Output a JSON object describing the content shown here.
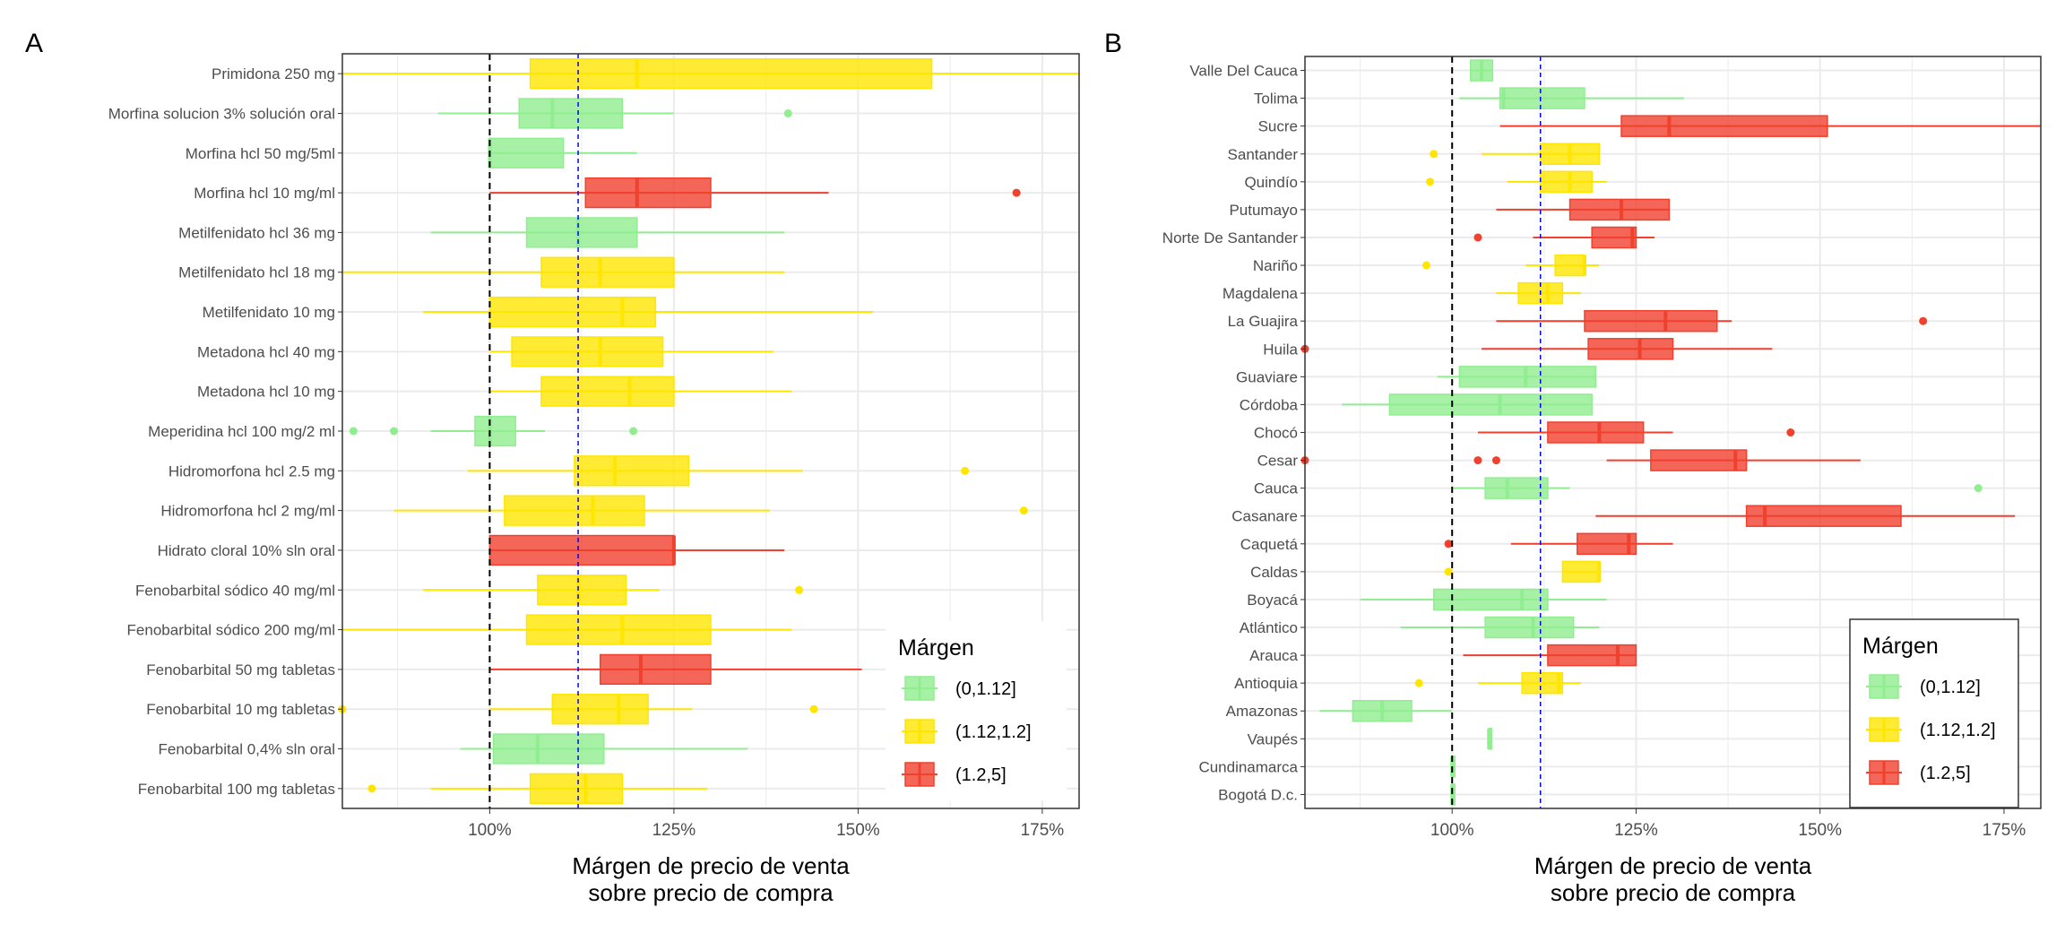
{
  "colors": {
    "low": "#90EE90",
    "mid": "#FFE600",
    "high": "#F0402E",
    "ref_black": "#000000",
    "ref_blue": "#0000FF",
    "grid": "#EBEBEB",
    "axis_text": "#4D4D4D"
  },
  "chart_data": [
    {
      "type": "boxplot",
      "panel_label": "A",
      "xlabel_line1": "Márgen de precio de venta",
      "xlabel_line2": "sobre precio de compra",
      "xlim": [
        0.8,
        1.8
      ],
      "x_ticks": [
        1.0,
        1.25,
        1.5,
        1.75
      ],
      "x_tick_labels": [
        "100%",
        "125%",
        "150%",
        "175%"
      ],
      "reference_lines": {
        "black_dashed": 1.0,
        "blue_dashed": 1.12
      },
      "legend": {
        "title": "Márgen",
        "position": "bottom-right",
        "entries": [
          {
            "label": "(0,1.12]",
            "group": "low"
          },
          {
            "label": "(1.12,1.2]",
            "group": "mid"
          },
          {
            "label": "(1.2,5]",
            "group": "high"
          }
        ]
      },
      "boxes": [
        {
          "label": "Primidona 250 mg",
          "group": "mid",
          "wmin": 0.8,
          "q1": 1.055,
          "median": 1.2,
          "q3": 1.6,
          "wmax": 1.8,
          "outliers": []
        },
        {
          "label": "Morfina solucion 3% solución oral",
          "group": "low",
          "wmin": 0.93,
          "q1": 1.04,
          "median": 1.085,
          "q3": 1.18,
          "wmax": 1.25,
          "outliers": [
            1.405
          ]
        },
        {
          "label": "Morfina hcl 50 mg/5ml",
          "group": "low",
          "wmin": 1.0,
          "q1": 1.0,
          "median": 1.0,
          "q3": 1.1,
          "wmax": 1.2,
          "outliers": []
        },
        {
          "label": "Morfina hcl 10 mg/ml",
          "group": "high",
          "wmin": 1.0,
          "q1": 1.13,
          "median": 1.2,
          "q3": 1.3,
          "wmax": 1.46,
          "outliers": [
            1.715
          ]
        },
        {
          "label": "Metilfenidato hcl 36 mg",
          "group": "low",
          "wmin": 0.92,
          "q1": 1.05,
          "median": 1.12,
          "q3": 1.2,
          "wmax": 1.4,
          "outliers": []
        },
        {
          "label": "Metilfenidato hcl 18 mg",
          "group": "mid",
          "wmin": 0.8,
          "q1": 1.07,
          "median": 1.15,
          "q3": 1.25,
          "wmax": 1.4,
          "outliers": []
        },
        {
          "label": "Metilfenidato 10 mg",
          "group": "mid",
          "wmin": 0.91,
          "q1": 1.0,
          "median": 1.18,
          "q3": 1.225,
          "wmax": 1.52,
          "outliers": []
        },
        {
          "label": "Metadona hcl 40 mg",
          "group": "mid",
          "wmin": 1.0,
          "q1": 1.03,
          "median": 1.15,
          "q3": 1.235,
          "wmax": 1.385,
          "outliers": []
        },
        {
          "label": "Metadona hcl 10 mg",
          "group": "mid",
          "wmin": 1.0,
          "q1": 1.07,
          "median": 1.19,
          "q3": 1.25,
          "wmax": 1.41,
          "outliers": []
        },
        {
          "label": "Meperidina hcl 100 mg/2 ml",
          "group": "low",
          "wmin": 0.92,
          "q1": 0.98,
          "median": 1.0,
          "q3": 1.035,
          "wmax": 1.075,
          "outliers": [
            0.815,
            0.87,
            1.195
          ]
        },
        {
          "label": "Hidromorfona hcl 2.5 mg",
          "group": "mid",
          "wmin": 0.97,
          "q1": 1.115,
          "median": 1.17,
          "q3": 1.27,
          "wmax": 1.425,
          "outliers": [
            1.645
          ]
        },
        {
          "label": "Hidromorfona hcl 2 mg/ml",
          "group": "mid",
          "wmin": 0.87,
          "q1": 1.02,
          "median": 1.14,
          "q3": 1.21,
          "wmax": 1.38,
          "outliers": [
            1.725
          ]
        },
        {
          "label": "Hidrato cloral 10% sln oral",
          "group": "high",
          "wmin": 1.0,
          "q1": 1.0,
          "median": 1.25,
          "q3": 1.25,
          "wmax": 1.4,
          "outliers": []
        },
        {
          "label": "Fenobarbital sódico 40 mg/ml",
          "group": "mid",
          "wmin": 0.91,
          "q1": 1.065,
          "median": 1.12,
          "q3": 1.185,
          "wmax": 1.23,
          "outliers": [
            1.42
          ]
        },
        {
          "label": "Fenobarbital sódico 200 mg/ml",
          "group": "mid",
          "wmin": 0.8,
          "q1": 1.05,
          "median": 1.18,
          "q3": 1.3,
          "wmax": 1.41,
          "outliers": []
        },
        {
          "label": "Fenobarbital 50 mg tabletas",
          "group": "high",
          "wmin": 1.0,
          "q1": 1.15,
          "median": 1.205,
          "q3": 1.3,
          "wmax": 1.505,
          "outliers": []
        },
        {
          "label": "Fenobarbital 10 mg tabletas",
          "group": "mid",
          "wmin": 1.0,
          "q1": 1.085,
          "median": 1.175,
          "q3": 1.215,
          "wmax": 1.275,
          "outliers": [
            0.8,
            1.44
          ]
        },
        {
          "label": "Fenobarbital 0,4% sln oral",
          "group": "low",
          "wmin": 0.96,
          "q1": 1.005,
          "median": 1.065,
          "q3": 1.155,
          "wmax": 1.35,
          "outliers": []
        },
        {
          "label": "Fenobarbital 100 mg tabletas",
          "group": "mid",
          "wmin": 0.92,
          "q1": 1.055,
          "median": 1.13,
          "q3": 1.18,
          "wmax": 1.295,
          "outliers": [
            0.84,
            1.765
          ]
        }
      ]
    },
    {
      "type": "boxplot",
      "panel_label": "B",
      "xlabel_line1": "Márgen de precio de venta",
      "xlabel_line2": "sobre precio de compra",
      "xlim": [
        0.8,
        1.8
      ],
      "x_ticks": [
        1.0,
        1.25,
        1.5,
        1.75
      ],
      "x_tick_labels": [
        "100%",
        "125%",
        "150%",
        "175%"
      ],
      "reference_lines": {
        "black_dashed": 1.0,
        "blue_dashed": 1.12
      },
      "legend": {
        "title": "Márgen",
        "position": "bottom-right",
        "entries": [
          {
            "label": "(0,1.12]",
            "group": "low"
          },
          {
            "label": "(1.12,1.2]",
            "group": "mid"
          },
          {
            "label": "(1.2,5]",
            "group": "high"
          }
        ]
      },
      "boxes": [
        {
          "label": "Valle Del Cauca",
          "group": "low",
          "wmin": 1.025,
          "q1": 1.025,
          "median": 1.04,
          "q3": 1.055,
          "wmax": 1.055,
          "outliers": []
        },
        {
          "label": "Tolima",
          "group": "low",
          "wmin": 1.01,
          "q1": 1.065,
          "median": 1.07,
          "q3": 1.18,
          "wmax": 1.315,
          "outliers": []
        },
        {
          "label": "Sucre",
          "group": "high",
          "wmin": 1.065,
          "q1": 1.23,
          "median": 1.295,
          "q3": 1.51,
          "wmax": 1.8,
          "outliers": []
        },
        {
          "label": "Santander",
          "group": "mid",
          "wmin": 1.04,
          "q1": 1.12,
          "median": 1.16,
          "q3": 1.2,
          "wmax": 1.2,
          "outliers": [
            0.975
          ]
        },
        {
          "label": "Quindío",
          "group": "mid",
          "wmin": 1.075,
          "q1": 1.12,
          "median": 1.16,
          "q3": 1.19,
          "wmax": 1.21,
          "outliers": [
            0.97
          ]
        },
        {
          "label": "Putumayo",
          "group": "high",
          "wmin": 1.06,
          "q1": 1.16,
          "median": 1.23,
          "q3": 1.295,
          "wmax": 1.295,
          "outliers": []
        },
        {
          "label": "Norte De Santander",
          "group": "high",
          "wmin": 1.11,
          "q1": 1.19,
          "median": 1.245,
          "q3": 1.25,
          "wmax": 1.275,
          "outliers": [
            1.035
          ]
        },
        {
          "label": "Nariño",
          "group": "mid",
          "wmin": 1.1,
          "q1": 1.14,
          "median": 1.18,
          "q3": 1.18,
          "wmax": 1.2,
          "outliers": [
            0.965
          ]
        },
        {
          "label": "Magdalena",
          "group": "mid",
          "wmin": 1.06,
          "q1": 1.09,
          "median": 1.13,
          "q3": 1.15,
          "wmax": 1.175,
          "outliers": []
        },
        {
          "label": "La Guajira",
          "group": "high",
          "wmin": 1.06,
          "q1": 1.18,
          "median": 1.29,
          "q3": 1.36,
          "wmax": 1.38,
          "outliers": [
            1.64
          ]
        },
        {
          "label": "Huila",
          "group": "high",
          "wmin": 1.04,
          "q1": 1.185,
          "median": 1.255,
          "q3": 1.3,
          "wmax": 1.435,
          "outliers": [
            0.8
          ]
        },
        {
          "label": "Guaviare",
          "group": "low",
          "wmin": 0.98,
          "q1": 1.01,
          "median": 1.1,
          "q3": 1.195,
          "wmax": 1.195,
          "outliers": []
        },
        {
          "label": "Córdoba",
          "group": "low",
          "wmin": 0.85,
          "q1": 0.915,
          "median": 1.065,
          "q3": 1.19,
          "wmax": 1.19,
          "outliers": []
        },
        {
          "label": "Chocó",
          "group": "high",
          "wmin": 1.035,
          "q1": 1.13,
          "median": 1.2,
          "q3": 1.26,
          "wmax": 1.3,
          "outliers": [
            1.46
          ]
        },
        {
          "label": "Cesar",
          "group": "high",
          "wmin": 1.21,
          "q1": 1.27,
          "median": 1.385,
          "q3": 1.4,
          "wmax": 1.555,
          "outliers": [
            0.8,
            1.035,
            1.06
          ]
        },
        {
          "label": "Cauca",
          "group": "low",
          "wmin": 1.0,
          "q1": 1.045,
          "median": 1.075,
          "q3": 1.13,
          "wmax": 1.16,
          "outliers": [
            1.715
          ]
        },
        {
          "label": "Casanare",
          "group": "high",
          "wmin": 1.195,
          "q1": 1.4,
          "median": 1.425,
          "q3": 1.61,
          "wmax": 1.765,
          "outliers": []
        },
        {
          "label": "Caquetá",
          "group": "high",
          "wmin": 1.08,
          "q1": 1.17,
          "median": 1.24,
          "q3": 1.25,
          "wmax": 1.3,
          "outliers": [
            0.995
          ]
        },
        {
          "label": "Caldas",
          "group": "mid",
          "wmin": 1.15,
          "q1": 1.15,
          "median": 1.2,
          "q3": 1.2,
          "wmax": 1.2,
          "outliers": [
            0.995
          ]
        },
        {
          "label": "Boyacá",
          "group": "low",
          "wmin": 0.875,
          "q1": 0.975,
          "median": 1.095,
          "q3": 1.13,
          "wmax": 1.21,
          "outliers": []
        },
        {
          "label": "Atlántico",
          "group": "low",
          "wmin": 0.93,
          "q1": 1.045,
          "median": 1.11,
          "q3": 1.165,
          "wmax": 1.2,
          "outliers": []
        },
        {
          "label": "Arauca",
          "group": "high",
          "wmin": 1.015,
          "q1": 1.13,
          "median": 1.225,
          "q3": 1.25,
          "wmax": 1.25,
          "outliers": []
        },
        {
          "label": "Antioquia",
          "group": "mid",
          "wmin": 1.035,
          "q1": 1.095,
          "median": 1.145,
          "q3": 1.15,
          "wmax": 1.175,
          "outliers": [
            0.955
          ]
        },
        {
          "label": "Amazonas",
          "group": "low",
          "wmin": 0.82,
          "q1": 0.865,
          "median": 0.905,
          "q3": 0.945,
          "wmax": 1.0,
          "outliers": []
        },
        {
          "label": "Vaupés",
          "group": "low",
          "wmin": 1.05,
          "q1": 1.05,
          "median": 1.05,
          "q3": 1.05,
          "wmax": 1.05,
          "outliers": []
        },
        {
          "label": "Cundinamarca",
          "group": "low",
          "wmin": 1.0,
          "q1": 1.0,
          "median": 1.0,
          "q3": 1.0,
          "wmax": 1.0,
          "outliers": []
        },
        {
          "label": "Bogotá D.c.",
          "group": "low",
          "wmin": 1.0,
          "q1": 1.0,
          "median": 1.0,
          "q3": 1.0,
          "wmax": 1.0,
          "outliers": []
        }
      ]
    }
  ]
}
